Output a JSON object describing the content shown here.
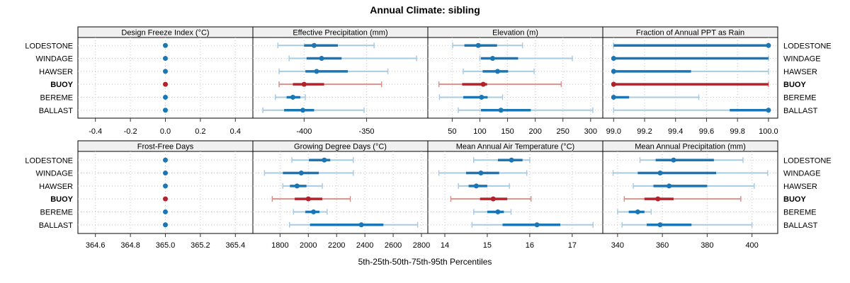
{
  "title": "Annual Climate: sibling",
  "xlabel": "5th-25th-50th-75th-95th Percentiles",
  "colors": {
    "blue": "#1a76b5",
    "blue_light": "#a9cbe2",
    "red": "#b2222b",
    "red_light": "#d6928c",
    "strip_bg": "#f0f0f0",
    "panel_border": "#000000",
    "grid": "#c8c8c8",
    "tick": "#333333",
    "text": "#000000"
  },
  "sites": [
    {
      "name": "LODESTONE",
      "bold": false,
      "highlight": false
    },
    {
      "name": "WINDAGE",
      "bold": false,
      "highlight": false
    },
    {
      "name": "HAWSER",
      "bold": false,
      "highlight": false
    },
    {
      "name": "BUOY",
      "bold": true,
      "highlight": true
    },
    {
      "name": "BEREME",
      "bold": false,
      "highlight": false
    },
    {
      "name": "BALLAST",
      "bold": false,
      "highlight": false
    }
  ],
  "chart_data": {
    "type": "trellis-dot-whisker",
    "percentiles": [
      5,
      25,
      50,
      75,
      95
    ],
    "legend_note": "each row = site; values per site are [p5,p25,p50,p75,p95]; BUOY drawn in red",
    "rows": [
      [
        {
          "label": "Design Freeze Index (°C)",
          "xlim": [
            -0.5,
            0.5
          ],
          "tick_values": [
            -0.4,
            -0.2,
            0.0,
            0.2,
            0.4
          ],
          "tick_labels": [
            "-0.4",
            "-0.2",
            "0.0",
            "0.2",
            "0.4"
          ],
          "values": [
            [
              0,
              0,
              0,
              0,
              0
            ],
            [
              0,
              0,
              0,
              0,
              0
            ],
            [
              0,
              0,
              0,
              0,
              0
            ],
            [
              0,
              0,
              0,
              0,
              0
            ],
            [
              0,
              0,
              0,
              0,
              0
            ],
            [
              0,
              0,
              0,
              0,
              0
            ]
          ]
        },
        {
          "label": "Effective Precipitation (mm)",
          "xlim": [
            -441,
            -301
          ],
          "tick_values": [
            -400,
            -350
          ],
          "tick_labels": [
            "-400",
            "-350"
          ],
          "values": [
            [
              -421,
              -400,
              -392,
              -373,
              -344
            ],
            [
              -412,
              -398,
              -386,
              -370,
              -310
            ],
            [
              -420,
              -399,
              -390,
              -365,
              -333
            ],
            [
              -420,
              -409,
              -400,
              -384,
              -338
            ],
            [
              -423,
              -414,
              -409,
              -403,
              -399
            ],
            [
              -433,
              -416,
              -401,
              -392,
              -352
            ]
          ]
        },
        {
          "label": "Elevation (m)",
          "xlim": [
            6,
            322
          ],
          "tick_values": [
            50,
            100,
            150,
            200,
            250,
            300
          ],
          "tick_labels": [
            "50",
            "100",
            "150",
            "200",
            "250",
            "300"
          ],
          "values": [
            [
              51,
              72,
              97,
              131,
              177
            ],
            [
              100,
              102,
              123,
              169,
              267
            ],
            [
              70,
              105,
              132,
              151,
              198
            ],
            [
              26,
              68,
              106,
              113,
              247
            ],
            [
              27,
              70,
              103,
              114,
              141
            ],
            [
              61,
              102,
              138,
              192,
              304
            ]
          ]
        },
        {
          "label": "Fraction of Annual PPT as Rain",
          "xlim": [
            98.93,
            100.06
          ],
          "tick_values": [
            99.0,
            99.2,
            99.4,
            99.6,
            99.8,
            100.0
          ],
          "tick_labels": [
            "99.0",
            "99.2",
            "99.4",
            "99.6",
            "99.8",
            "100.0"
          ],
          "values": [
            [
              99.0,
              99.0,
              100.0,
              100.0,
              100.0
            ],
            [
              99.0,
              99.0,
              99.0,
              100.0,
              100.0
            ],
            [
              99.0,
              99.0,
              99.0,
              99.5,
              100.0
            ],
            [
              99.0,
              99.0,
              99.0,
              100.0,
              100.0
            ],
            [
              99.0,
              99.0,
              99.0,
              99.1,
              99.55
            ],
            [
              99.0,
              99.75,
              100.0,
              100.0,
              100.0
            ]
          ]
        }
      ],
      [
        {
          "label": "Frost-Free Days",
          "xlim": [
            364.5,
            365.5
          ],
          "tick_values": [
            364.6,
            364.8,
            365.0,
            365.2,
            365.4
          ],
          "tick_labels": [
            "364.6",
            "364.8",
            "365.0",
            "365.2",
            "365.4"
          ],
          "values": [
            [
              365,
              365,
              365,
              365,
              365
            ],
            [
              365,
              365,
              365,
              365,
              365
            ],
            [
              365,
              365,
              365,
              365,
              365
            ],
            [
              365,
              365,
              365,
              365,
              365
            ],
            [
              365,
              365,
              365,
              365,
              365
            ],
            [
              365,
              365,
              365,
              365,
              365
            ]
          ]
        },
        {
          "label": "Growing Degree Days (°C)",
          "xlim": [
            1608,
            2845
          ],
          "tick_values": [
            1800,
            2000,
            2200,
            2400,
            2600,
            2800
          ],
          "tick_labels": [
            "1800",
            "2000",
            "2200",
            "2400",
            "2600",
            "2800"
          ],
          "values": [
            [
              1884,
              2004,
              2113,
              2155,
              2318
            ],
            [
              1690,
              1820,
              1950,
              2074,
              2318
            ],
            [
              1820,
              1870,
              1920,
              1987,
              2099
            ],
            [
              1745,
              1904,
              2000,
              2099,
              2297
            ],
            [
              1895,
              1979,
              2037,
              2079,
              2133
            ],
            [
              1867,
              2012,
              2375,
              2531,
              2773
            ]
          ]
        },
        {
          "label": "Mean Annual Air Temperature (°C)",
          "xlim": [
            13.6,
            17.72
          ],
          "tick_values": [
            14,
            15,
            16,
            17
          ],
          "tick_labels": [
            "14",
            "15",
            "16",
            "17"
          ],
          "values": [
            [
              14.68,
              15.25,
              15.57,
              15.83,
              16.0
            ],
            [
              13.86,
              14.5,
              14.85,
              15.28,
              15.93
            ],
            [
              14.32,
              14.56,
              14.74,
              15.0,
              15.52
            ],
            [
              14.14,
              14.83,
              15.14,
              15.47,
              16.03
            ],
            [
              14.68,
              15.0,
              15.25,
              15.39,
              15.56
            ],
            [
              14.64,
              15.36,
              16.17,
              16.72,
              17.49
            ]
          ]
        },
        {
          "label": "Mean Annual Precipitation (mm)",
          "xlim": [
            333.4,
            411.5
          ],
          "tick_values": [
            340,
            360,
            380,
            400
          ],
          "tick_labels": [
            "340",
            "360",
            "380",
            "400"
          ],
          "values": [
            [
              350,
              357,
              365,
              383,
              396
            ],
            [
              338,
              349,
              359,
              384,
              407
            ],
            [
              347,
              356,
              363,
              380,
              401
            ],
            [
              343,
              352,
              358,
              365,
              395
            ],
            [
              340,
              345,
              349,
              352,
              355
            ],
            [
              342,
              353,
              359,
              373,
              400
            ]
          ]
        }
      ]
    ]
  }
}
